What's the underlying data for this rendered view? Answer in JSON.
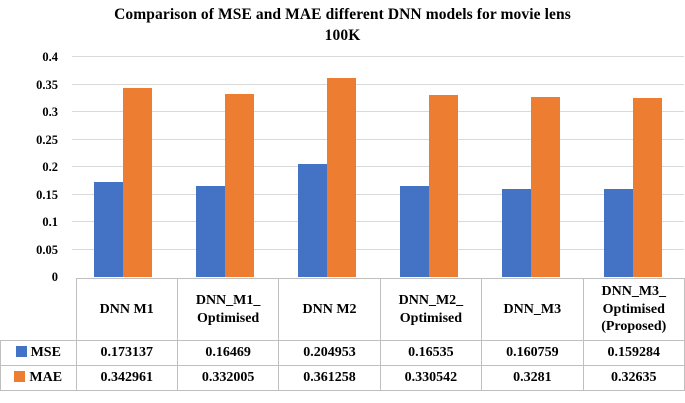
{
  "header": {
    "title_line1": "Comparison of MSE and MAE different DNN models for movie lens",
    "title_line2": "100K"
  },
  "chart_data": {
    "type": "bar",
    "title": "Comparison of MSE and MAE different DNN models for movie lens 100K",
    "categories": [
      "DNN M1",
      "DNN_M1_ Optimised",
      "DNN M2",
      "DNN_M2_ Optimised",
      "DNN_M3",
      "DNN_M3_ Optimised (Proposed)"
    ],
    "series": [
      {
        "name": "MSE",
        "color": "#4472C4",
        "values": [
          0.173137,
          0.16469,
          0.204953,
          0.16535,
          0.160759,
          0.159284
        ]
      },
      {
        "name": "MAE",
        "color": "#ED7D31",
        "values": [
          0.342961,
          0.332005,
          0.361258,
          0.330542,
          0.3281,
          0.32635
        ]
      }
    ],
    "ylim": [
      0,
      0.4
    ],
    "yticks": [
      0,
      0.05,
      0.1,
      0.15,
      0.2,
      0.25,
      0.3,
      0.35,
      0.4
    ],
    "ytick_labels": [
      "0",
      "0.05",
      "0.1",
      "0.15",
      "0.2",
      "0.25",
      "0.3",
      "0.35",
      "0.4"
    ],
    "grid": true,
    "gridline_color": "#d9d9d9",
    "legend_position": "table-left"
  }
}
